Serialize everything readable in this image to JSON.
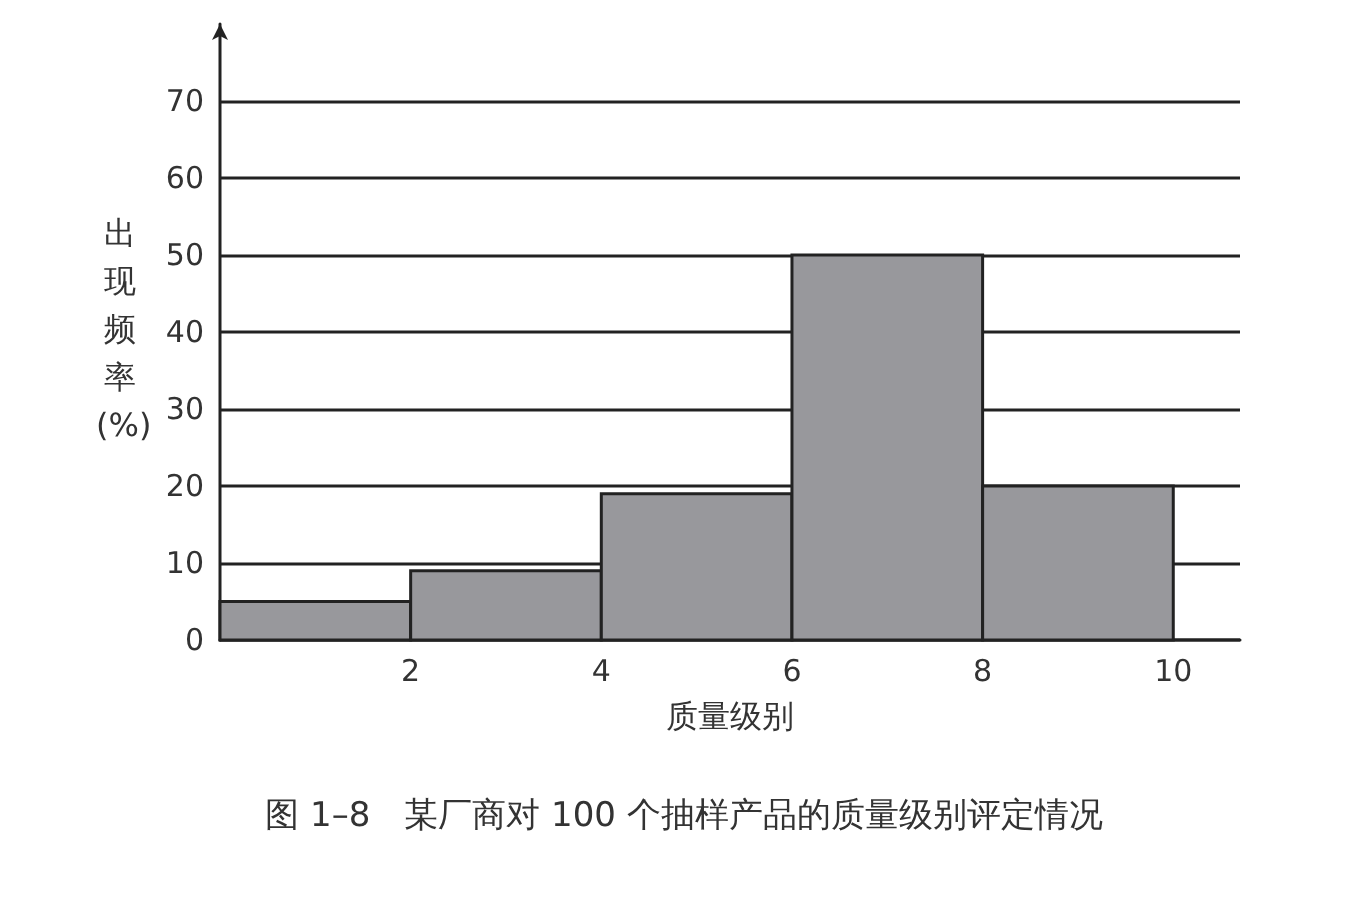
{
  "chart_data": {
    "type": "histogram",
    "xlabel": "质量级别",
    "ylabel": "出现频率(%)",
    "bins": [
      0,
      2,
      4,
      6,
      8,
      10
    ],
    "values": [
      5,
      9,
      19,
      50,
      20
    ],
    "color": "#98989c",
    "xlim": [
      0,
      10.7
    ],
    "xticks": [
      2,
      4,
      6,
      8,
      10
    ],
    "ylim": [
      0,
      80
    ],
    "yticks": [
      0,
      10,
      20,
      30,
      40,
      50,
      60,
      70
    ],
    "grid": "y",
    "annotations": [
      "图 1–8　某厂商对 100 个抽样产品的质量级别评定情况"
    ]
  }
}
